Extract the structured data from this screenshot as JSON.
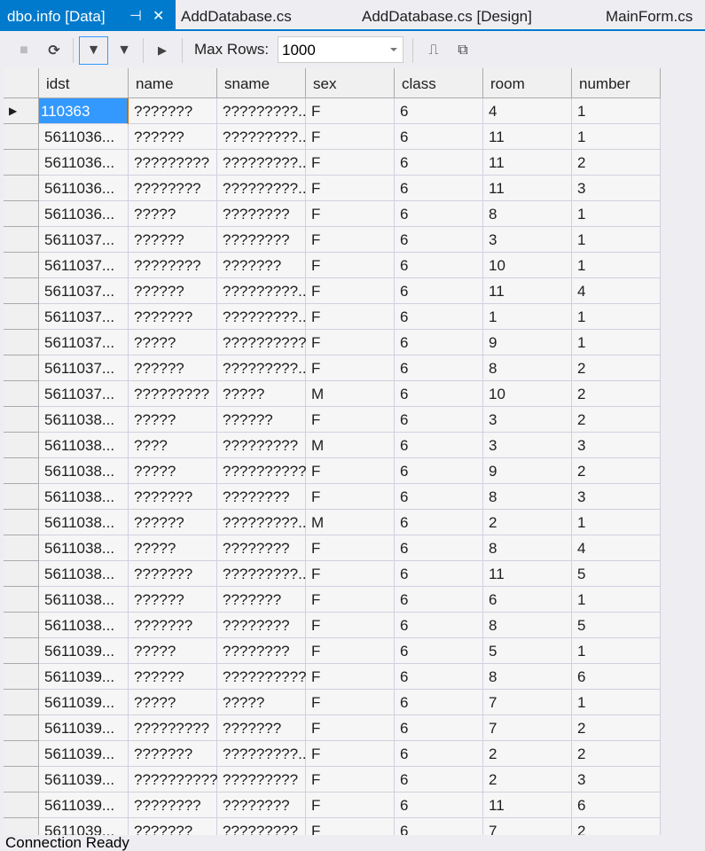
{
  "tabs": [
    {
      "label": "dbo.info [Data]",
      "active": true
    },
    {
      "label": "AddDatabase.cs"
    },
    {
      "label": "AddDatabase.cs [Design]"
    },
    {
      "label": "MainForm.cs"
    }
  ],
  "toolbar": {
    "max_rows_label": "Max Rows:",
    "max_rows_value": "1000",
    "icons": [
      "stop-icon",
      "refresh-icon",
      "filter-clear-icon",
      "filter-icon",
      "execute-icon",
      "script-icon",
      "script-file-icon"
    ]
  },
  "grid": {
    "columns": [
      "idst",
      "name",
      "sname",
      "sex",
      "class",
      "room",
      "number"
    ],
    "rows": [
      [
        "110363",
        "???????",
        "?????????...",
        "F",
        "6",
        "4",
        "1"
      ],
      [
        "5611036...",
        "??????",
        "?????????...",
        "F",
        "6",
        "11",
        "1"
      ],
      [
        "5611036...",
        "?????????",
        "?????????...",
        "F",
        "6",
        "11",
        "2"
      ],
      [
        "5611036...",
        "????????",
        "?????????...",
        "F",
        "6",
        "11",
        "3"
      ],
      [
        "5611036...",
        "?????",
        "????????",
        "F",
        "6",
        "8",
        "1"
      ],
      [
        "5611037...",
        "??????",
        "????????",
        "F",
        "6",
        "3",
        "1"
      ],
      [
        "5611037...",
        "????????",
        "???????",
        "F",
        "6",
        "10",
        "1"
      ],
      [
        "5611037...",
        "??????",
        "?????????...",
        "F",
        "6",
        "11",
        "4"
      ],
      [
        "5611037...",
        "???????",
        "?????????...",
        "F",
        "6",
        "1",
        "1"
      ],
      [
        "5611037...",
        "?????",
        "??????????",
        "F",
        "6",
        "9",
        "1"
      ],
      [
        "5611037...",
        "??????",
        "?????????...",
        "F",
        "6",
        "8",
        "2"
      ],
      [
        "5611037...",
        "?????????",
        "?????",
        "M",
        "6",
        "10",
        "2"
      ],
      [
        "5611038...",
        "?????",
        "??????",
        "F",
        "6",
        "3",
        "2"
      ],
      [
        "5611038...",
        "????",
        "?????????",
        "M",
        "6",
        "3",
        "3"
      ],
      [
        "5611038...",
        "?????",
        "??????????",
        "F",
        "6",
        "9",
        "2"
      ],
      [
        "5611038...",
        "???????",
        "????????",
        "F",
        "6",
        "8",
        "3"
      ],
      [
        "5611038...",
        "??????",
        "?????????...",
        "M",
        "6",
        "2",
        "1"
      ],
      [
        "5611038...",
        "?????",
        "????????",
        "F",
        "6",
        "8",
        "4"
      ],
      [
        "5611038...",
        "???????",
        "?????????...",
        "F",
        "6",
        "11",
        "5"
      ],
      [
        "5611038...",
        "??????",
        "???????",
        "F",
        "6",
        "6",
        "1"
      ],
      [
        "5611038...",
        "???????",
        "????????",
        "F",
        "6",
        "8",
        "5"
      ],
      [
        "5611039...",
        "?????",
        "????????",
        "F",
        "6",
        "5",
        "1"
      ],
      [
        "5611039...",
        "??????",
        "??????????",
        "F",
        "6",
        "8",
        "6"
      ],
      [
        "5611039...",
        "?????",
        "?????",
        "F",
        "6",
        "7",
        "1"
      ],
      [
        "5611039...",
        "?????????",
        "???????",
        "F",
        "6",
        "7",
        "2"
      ],
      [
        "5611039...",
        "???????",
        "?????????...",
        "F",
        "6",
        "2",
        "2"
      ],
      [
        "5611039...",
        "??????????",
        "?????????",
        "F",
        "6",
        "2",
        "3"
      ],
      [
        "5611039...",
        "????????",
        "????????",
        "F",
        "6",
        "11",
        "6"
      ],
      [
        "5611039...",
        "???????",
        "?????????",
        "F",
        "6",
        "7",
        "2"
      ]
    ]
  },
  "status": {
    "text": "Connection Ready"
  }
}
